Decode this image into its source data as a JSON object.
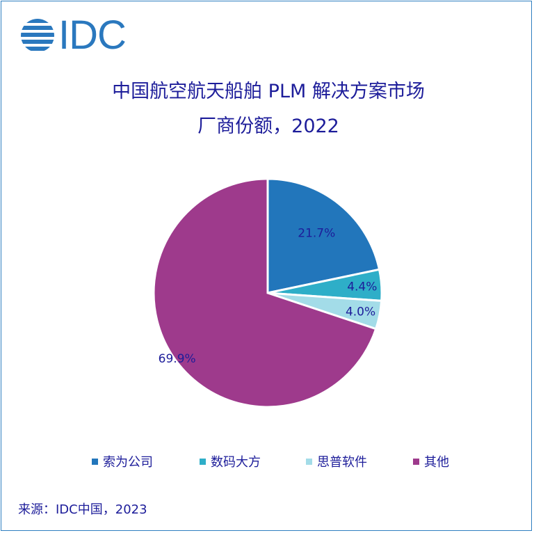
{
  "logo": {
    "text": "IDC"
  },
  "chart_data": {
    "type": "pie",
    "title_line1": "中国航空航天船舶 PLM 解决方案市场",
    "title_line2": "厂商份额，2022",
    "labels": [
      "索为公司",
      "数码大方",
      "思普软件",
      "其他"
    ],
    "values": [
      21.7,
      4.4,
      4.0,
      69.9
    ],
    "value_labels": [
      "21.7%",
      "4.4%",
      "4.0%",
      "69.9%"
    ],
    "colors": [
      "#2276bb",
      "#2eaec8",
      "#a3dce8",
      "#9e3a8c"
    ],
    "legend_position": "bottom"
  },
  "source": "来源：IDC中国，2023"
}
